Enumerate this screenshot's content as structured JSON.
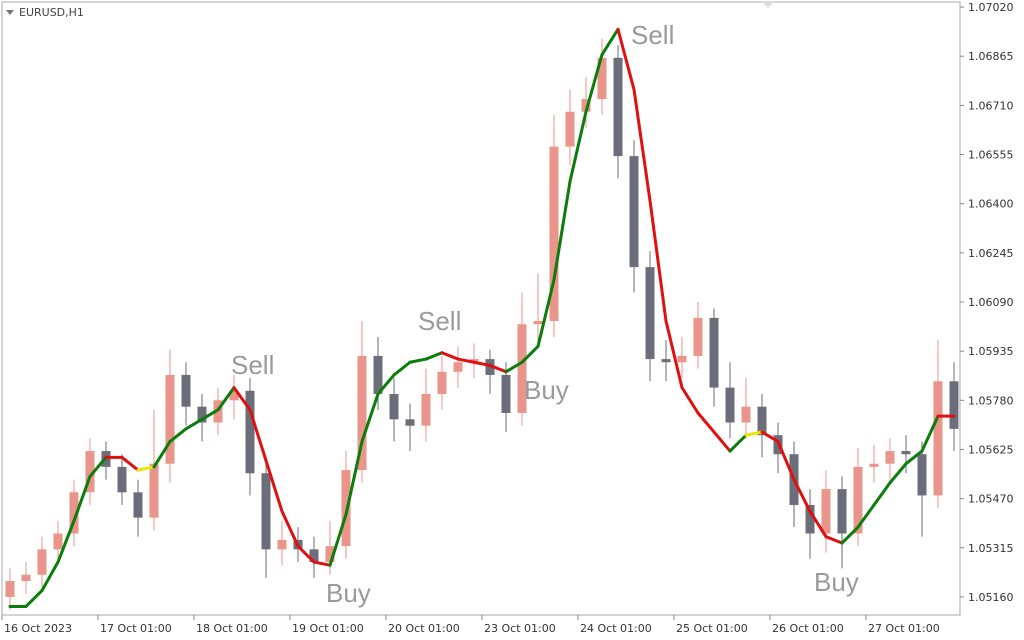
{
  "chart_data": {
    "type": "candlestick",
    "symbol": "EURUSD,H1",
    "up_color": "#e9958a",
    "down_color": "#6b6e78",
    "candles": {
      "open": [
        1.0516,
        1.0521,
        1.0523,
        1.0531,
        1.0536,
        1.0549,
        1.0562,
        1.0557,
        1.0549,
        1.0541,
        1.0558,
        1.0586,
        1.0576,
        1.0571,
        1.0578,
        1.0581,
        1.0555,
        1.0531,
        1.0534,
        1.0531,
        1.0527,
        1.0532,
        1.0556,
        1.0592,
        1.058,
        1.0572,
        1.057,
        1.058,
        1.0587,
        1.059,
        1.0591,
        1.0586,
        1.0574,
        1.0602,
        1.0603,
        1.0658,
        1.0669,
        1.0673,
        1.0686,
        1.0655,
        1.062,
        1.0591,
        1.059,
        1.0592,
        1.0604,
        1.0582,
        1.0571,
        1.0576,
        1.0567,
        1.0561,
        1.0545,
        1.0536,
        1.055,
        1.0536,
        1.0557,
        1.0558,
        1.0562,
        1.0561,
        1.0548,
        1.0584
      ],
      "high": [
        1.0525,
        1.0527,
        1.0535,
        1.054,
        1.0553,
        1.0566,
        1.0565,
        1.0561,
        1.0553,
        1.0575,
        1.0594,
        1.059,
        1.058,
        1.0582,
        1.0586,
        1.0585,
        1.0559,
        1.054,
        1.0538,
        1.0535,
        1.054,
        1.0562,
        1.0603,
        1.0598,
        1.0585,
        1.0577,
        1.0588,
        1.0592,
        1.0595,
        1.0596,
        1.0594,
        1.059,
        1.0612,
        1.0618,
        1.0668,
        1.0676,
        1.068,
        1.0692,
        1.069,
        1.066,
        1.0625,
        1.0597,
        1.0598,
        1.0609,
        1.0607,
        1.059,
        1.0585,
        1.058,
        1.0571,
        1.0565,
        1.055,
        1.0556,
        1.0554,
        1.0563,
        1.0564,
        1.0566,
        1.0567,
        1.0565,
        1.0597,
        1.059
      ],
      "low": [
        1.0512,
        1.0517,
        1.0519,
        1.0527,
        1.0532,
        1.0545,
        1.0553,
        1.0545,
        1.0535,
        1.0537,
        1.0552,
        1.057,
        1.0565,
        1.0567,
        1.0572,
        1.0548,
        1.0522,
        1.0526,
        1.0527,
        1.0522,
        1.0523,
        1.0528,
        1.0552,
        1.0575,
        1.0565,
        1.0562,
        1.0565,
        1.0575,
        1.0582,
        1.0585,
        1.058,
        1.0568,
        1.057,
        1.0596,
        1.0598,
        1.0652,
        1.0664,
        1.0668,
        1.0648,
        1.0612,
        1.0584,
        1.0584,
        1.0585,
        1.0588,
        1.0576,
        1.0566,
        1.0566,
        1.056,
        1.0555,
        1.0538,
        1.0528,
        1.053,
        1.0525,
        1.0532,
        1.0552,
        1.0553,
        1.0555,
        1.0535,
        1.0544,
        1.0562
      ],
      "close": [
        1.0521,
        1.0523,
        1.0531,
        1.0536,
        1.0549,
        1.0562,
        1.0557,
        1.0549,
        1.0541,
        1.0558,
        1.0586,
        1.0576,
        1.0571,
        1.0578,
        1.0581,
        1.0555,
        1.0531,
        1.0534,
        1.0531,
        1.0527,
        1.0532,
        1.0556,
        1.0592,
        1.058,
        1.0572,
        1.057,
        1.058,
        1.0587,
        1.059,
        1.0591,
        1.0586,
        1.0574,
        1.0602,
        1.0603,
        1.0658,
        1.0669,
        1.0673,
        1.0686,
        1.0655,
        1.062,
        1.0591,
        1.059,
        1.0592,
        1.0604,
        1.0582,
        1.0571,
        1.0576,
        1.0567,
        1.0561,
        1.0545,
        1.0536,
        1.055,
        1.0536,
        1.0557,
        1.0558,
        1.0562,
        1.0561,
        1.0548,
        1.0584,
        1.0569
      ]
    },
    "trend_line": {
      "values": [
        1.0513,
        1.0513,
        1.0518,
        1.0527,
        1.054,
        1.0554,
        1.056,
        1.056,
        1.0556,
        1.0557,
        1.0565,
        1.0569,
        1.0572,
        1.0575,
        1.0582,
        1.0575,
        1.0559,
        1.0543,
        1.0532,
        1.0527,
        1.0526,
        1.0542,
        1.0565,
        1.058,
        1.0586,
        1.059,
        1.0591,
        1.0593,
        1.0591,
        1.059,
        1.0589,
        1.0587,
        1.059,
        1.0595,
        1.0616,
        1.0647,
        1.0669,
        1.0687,
        1.0695,
        1.0676,
        1.0641,
        1.0603,
        1.0582,
        1.0574,
        1.0568,
        1.0562,
        1.0567,
        1.0568,
        1.0565,
        1.0553,
        1.0543,
        1.0535,
        1.0533,
        1.0538,
        1.0545,
        1.0552,
        1.0558,
        1.0562,
        1.0573,
        1.0573
      ],
      "segment_colors": [
        "#0a7d0a",
        "#0a7d0a",
        "#0a7d0a",
        "#0a7d0a",
        "#0a7d0a",
        "#0a7d0a",
        "#e01010",
        "#e01010",
        "#e8e800",
        "#0a7d0a",
        "#0a7d0a",
        "#0a7d0a",
        "#0a7d0a",
        "#0a7d0a",
        "#e01010",
        "#e01010",
        "#e01010",
        "#e01010",
        "#e01010",
        "#e01010",
        "#0a7d0a",
        "#0a7d0a",
        "#0a7d0a",
        "#0a7d0a",
        "#0a7d0a",
        "#0a7d0a",
        "#0a7d0a",
        "#e01010",
        "#e01010",
        "#e01010",
        "#e01010",
        "#0a7d0a",
        "#0a7d0a",
        "#0a7d0a",
        "#0a7d0a",
        "#0a7d0a",
        "#0a7d0a",
        "#0a7d0a",
        "#e01010",
        "#e01010",
        "#e01010",
        "#e01010",
        "#e01010",
        "#e01010",
        "#e01010",
        "#0a7d0a",
        "#e8e800",
        "#e01010",
        "#e01010",
        "#e01010",
        "#e01010",
        "#e01010",
        "#0a7d0a",
        "#0a7d0a",
        "#0a7d0a",
        "#0a7d0a",
        "#0a7d0a",
        "#0a7d0a",
        "#e01010"
      ]
    },
    "annotations": [
      "Sell",
      "Buy",
      "Sell",
      "Buy",
      "Sell",
      "Buy"
    ],
    "xlim": [
      -0.5,
      59.375
    ],
    "xticks": [
      {
        "value": -0.5,
        "label": "16 Oct 2023"
      },
      {
        "value": 5.5,
        "label": "17 Oct 01:00"
      },
      {
        "value": 11.5,
        "label": "18 Oct 01:00"
      },
      {
        "value": 17.5,
        "label": "19 Oct 01:00"
      },
      {
        "value": 23.5,
        "label": "20 Oct 01:00"
      },
      {
        "value": 29.5,
        "label": "23 Oct 01:00"
      },
      {
        "value": 35.5,
        "label": "24 Oct 01:00"
      },
      {
        "value": 41.5,
        "label": "25 Oct 01:00"
      },
      {
        "value": 47.5,
        "label": "26 Oct 01:00"
      },
      {
        "value": 53.5,
        "label": "27 Oct 01:00"
      }
    ],
    "ylim": [
      1.05103,
      1.07036
    ],
    "yticks": [
      {
        "value": 1.0702,
        "label": "1.07020"
      },
      1.06865,
      {
        "value": 1.0671,
        "label": "1.06710"
      },
      1.06555,
      {
        "value": 1.064,
        "label": "1.06400"
      },
      1.06245,
      {
        "value": 1.0609,
        "label": "1.06090"
      },
      1.05935,
      {
        "value": 1.0578,
        "label": "1.05780"
      },
      1.05625,
      {
        "value": 1.0547,
        "label": "1.05470"
      },
      1.05315,
      {
        "value": 1.0516,
        "label": "1.05160"
      }
    ]
  }
}
